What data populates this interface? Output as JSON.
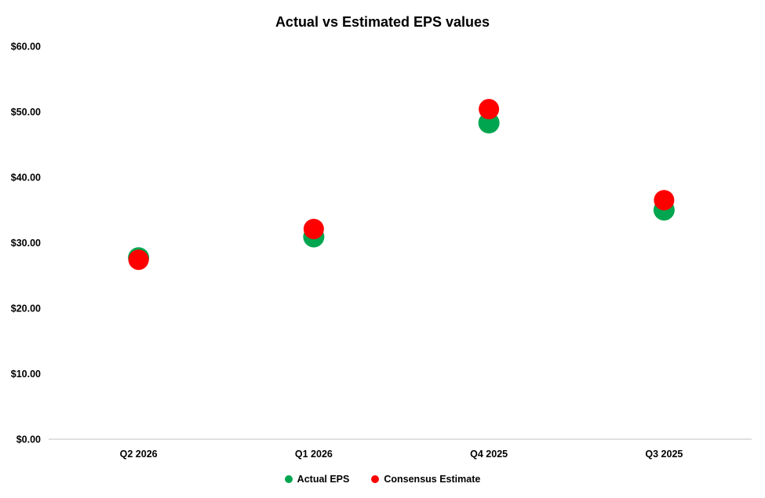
{
  "chart_data": {
    "type": "scatter",
    "title": "Actual vs Estimated EPS values",
    "categories": [
      "Q2 2026",
      "Q1 2026",
      "Q4 2025",
      "Q3 2025"
    ],
    "series": [
      {
        "name": "Actual EPS",
        "color": "#00A64F",
        "values": [
          27.7,
          30.9,
          48.3,
          35.0
        ]
      },
      {
        "name": "Consensus Estimate",
        "color": "#FF0000",
        "values": [
          27.4,
          32.1,
          50.4,
          36.5
        ]
      }
    ],
    "y_axis": {
      "min": 0,
      "max": 60,
      "tick_step": 10,
      "tick_values": [
        0,
        10,
        20,
        30,
        40,
        50,
        60
      ],
      "tick_labels": [
        "$0.00",
        "$10.00",
        "$20.00",
        "$30.00",
        "$40.00",
        "$50.00",
        "$60.00"
      ]
    },
    "xlabel": "",
    "ylabel": "",
    "grid": false,
    "legend_position": "bottom"
  },
  "colors": {
    "axis_line": "#D6D6D6",
    "text": "#000000",
    "background": "#FFFFFF"
  }
}
